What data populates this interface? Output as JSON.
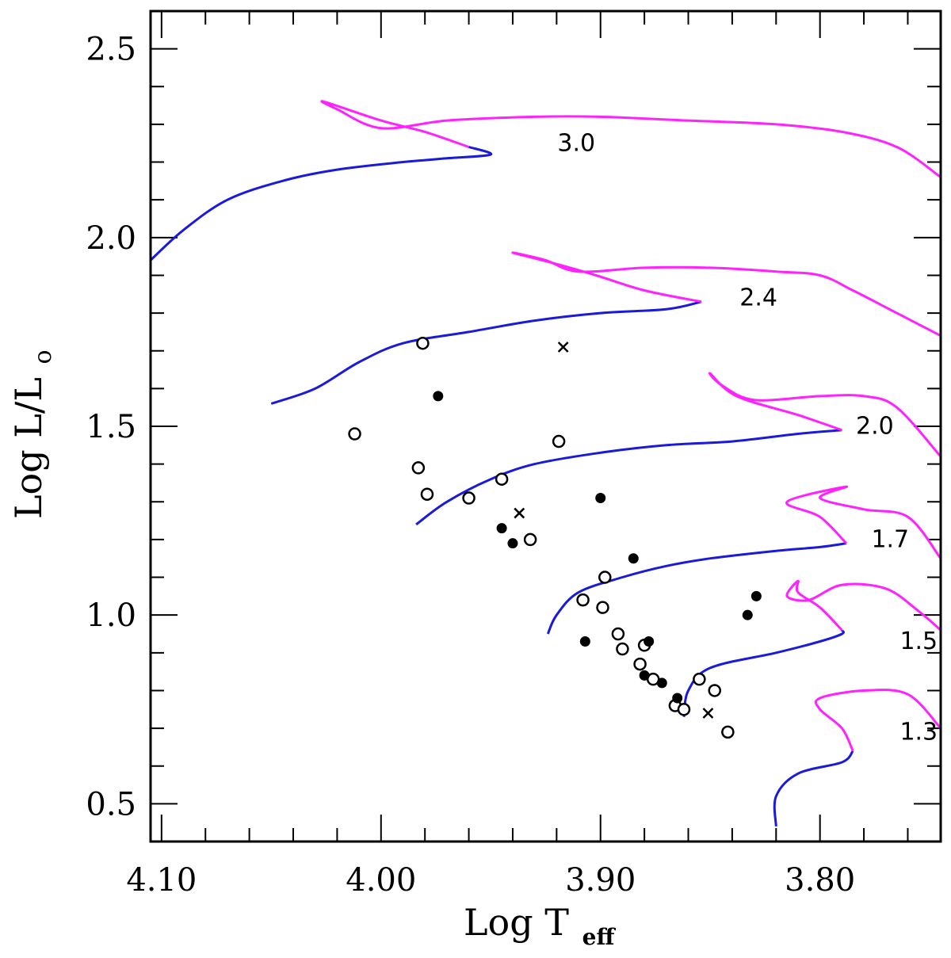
{
  "chart_data": {
    "type": "scatter",
    "title": "",
    "xlabel": "Log T",
    "xlabel_sub": "eff",
    "ylabel": "Log L/L",
    "ylabel_sub": "o",
    "xlim": [
      4.105,
      3.745
    ],
    "ylim": [
      0.4,
      2.6
    ],
    "x_ticks_major": [
      {
        "value": 4.1,
        "label": "4.10"
      },
      {
        "value": 4.0,
        "label": "4.00"
      },
      {
        "value": 3.9,
        "label": "3.90"
      },
      {
        "value": 3.8,
        "label": "3.80"
      }
    ],
    "x_ticks_minor": [
      4.08,
      4.06,
      4.04,
      4.02,
      3.98,
      3.96,
      3.94,
      3.92,
      3.88,
      3.86,
      3.84,
      3.82,
      3.78,
      3.76
    ],
    "y_ticks_major": [
      {
        "value": 0.5,
        "label": "0.5"
      },
      {
        "value": 1.0,
        "label": "1.0"
      },
      {
        "value": 1.5,
        "label": "1.5"
      },
      {
        "value": 2.0,
        "label": "2.0"
      },
      {
        "value": 2.5,
        "label": "2.5"
      }
    ],
    "y_ticks_minor": [
      0.6,
      0.7,
      0.8,
      0.9,
      1.1,
      1.2,
      1.3,
      1.4,
      1.6,
      1.7,
      1.8,
      1.9,
      2.1,
      2.2,
      2.3,
      2.4
    ],
    "colors": {
      "main_sequence": "#1a1adb",
      "post_main_sequence": "#ff22ff",
      "points": "#000000"
    },
    "tracks": [
      {
        "mass_label": "3.0",
        "label_pos": [
          3.911,
          2.23
        ],
        "blue": [
          [
            4.105,
            1.94
          ],
          [
            4.09,
            2.02
          ],
          [
            4.07,
            2.1
          ],
          [
            4.045,
            2.15
          ],
          [
            4.02,
            2.18
          ],
          [
            3.99,
            2.2
          ],
          [
            3.97,
            2.21
          ],
          [
            3.95,
            2.22
          ],
          [
            3.96,
            2.24
          ]
        ],
        "magenta": [
          [
            3.96,
            2.24
          ],
          [
            3.98,
            2.28
          ],
          [
            4.0,
            2.31
          ],
          [
            4.026,
            2.36
          ],
          [
            4.02,
            2.34
          ],
          [
            4.0,
            2.29
          ],
          [
            3.97,
            2.31
          ],
          [
            3.93,
            2.32
          ],
          [
            3.9,
            2.32
          ],
          [
            3.86,
            2.31
          ],
          [
            3.82,
            2.3
          ],
          [
            3.79,
            2.28
          ],
          [
            3.765,
            2.24
          ],
          [
            3.745,
            2.16
          ]
        ]
      },
      {
        "mass_label": "2.4",
        "label_pos": [
          3.828,
          1.82
        ],
        "blue": [
          [
            4.05,
            1.56
          ],
          [
            4.03,
            1.6
          ],
          [
            4.01,
            1.67
          ],
          [
            3.99,
            1.72
          ],
          [
            3.96,
            1.75
          ],
          [
            3.93,
            1.78
          ],
          [
            3.9,
            1.8
          ],
          [
            3.87,
            1.81
          ],
          [
            3.854,
            1.83
          ]
        ],
        "magenta": [
          [
            3.854,
            1.83
          ],
          [
            3.88,
            1.86
          ],
          [
            3.902,
            1.9
          ],
          [
            3.92,
            1.93
          ],
          [
            3.94,
            1.96
          ],
          [
            3.925,
            1.94
          ],
          [
            3.91,
            1.91
          ],
          [
            3.88,
            1.92
          ],
          [
            3.85,
            1.92
          ],
          [
            3.82,
            1.91
          ],
          [
            3.8,
            1.9
          ],
          [
            3.785,
            1.86
          ],
          [
            3.765,
            1.8
          ],
          [
            3.745,
            1.74
          ]
        ]
      },
      {
        "mass_label": "2.0",
        "label_pos": [
          3.775,
          1.48
        ],
        "blue": [
          [
            3.984,
            1.24
          ],
          [
            3.97,
            1.3
          ],
          [
            3.95,
            1.36
          ],
          [
            3.93,
            1.4
          ],
          [
            3.9,
            1.43
          ],
          [
            3.87,
            1.45
          ],
          [
            3.84,
            1.46
          ],
          [
            3.81,
            1.48
          ],
          [
            3.79,
            1.49
          ]
        ],
        "magenta": [
          [
            3.79,
            1.49
          ],
          [
            3.81,
            1.53
          ],
          [
            3.838,
            1.58
          ],
          [
            3.85,
            1.64
          ],
          [
            3.845,
            1.61
          ],
          [
            3.83,
            1.57
          ],
          [
            3.8,
            1.58
          ],
          [
            3.78,
            1.58
          ],
          [
            3.765,
            1.55
          ],
          [
            3.745,
            1.42
          ]
        ]
      },
      {
        "mass_label": "1.7",
        "label_pos": [
          3.768,
          1.18
        ],
        "blue": [
          [
            3.924,
            0.95
          ],
          [
            3.92,
            1.0
          ],
          [
            3.91,
            1.06
          ],
          [
            3.89,
            1.1
          ],
          [
            3.87,
            1.13
          ],
          [
            3.85,
            1.15
          ],
          [
            3.82,
            1.17
          ],
          [
            3.8,
            1.18
          ],
          [
            3.788,
            1.19
          ]
        ],
        "magenta": [
          [
            3.788,
            1.19
          ],
          [
            3.8,
            1.26
          ],
          [
            3.815,
            1.3
          ],
          [
            3.788,
            1.34
          ],
          [
            3.8,
            1.31
          ],
          [
            3.78,
            1.28
          ],
          [
            3.76,
            1.26
          ],
          [
            3.745,
            1.15
          ]
        ]
      },
      {
        "mass_label": "1.5",
        "label_pos": [
          3.755,
          0.91
        ],
        "blue": [
          [
            3.862,
            0.73
          ],
          [
            3.86,
            0.8
          ],
          [
            3.85,
            0.86
          ],
          [
            3.82,
            0.9
          ],
          [
            3.8,
            0.93
          ],
          [
            3.79,
            0.95
          ],
          [
            3.79,
            0.96
          ]
        ],
        "magenta": [
          [
            3.79,
            0.96
          ],
          [
            3.8,
            1.02
          ],
          [
            3.81,
            1.06
          ],
          [
            3.81,
            1.09
          ],
          [
            3.815,
            1.05
          ],
          [
            3.805,
            1.04
          ],
          [
            3.79,
            1.08
          ],
          [
            3.77,
            1.07
          ],
          [
            3.755,
            1.01
          ],
          [
            3.745,
            0.96
          ]
        ]
      },
      {
        "mass_label": "1.3",
        "label_pos": [
          3.755,
          0.67
        ],
        "blue": [
          [
            3.82,
            0.44
          ],
          [
            3.82,
            0.52
          ],
          [
            3.81,
            0.58
          ],
          [
            3.79,
            0.61
          ],
          [
            3.785,
            0.64
          ]
        ],
        "magenta": [
          [
            3.785,
            0.64
          ],
          [
            3.79,
            0.7
          ],
          [
            3.8,
            0.75
          ],
          [
            3.8,
            0.78
          ],
          [
            3.78,
            0.8
          ],
          [
            3.76,
            0.79
          ],
          [
            3.745,
            0.7
          ]
        ]
      }
    ],
    "series": [
      {
        "name": "open-circles",
        "marker": "open-circle",
        "points": [
          [
            3.981,
            1.72
          ],
          [
            4.012,
            1.48
          ],
          [
            3.983,
            1.39
          ],
          [
            3.979,
            1.32
          ],
          [
            3.96,
            1.31
          ],
          [
            3.945,
            1.36
          ],
          [
            3.919,
            1.46
          ],
          [
            3.932,
            1.2
          ],
          [
            3.898,
            1.1
          ],
          [
            3.908,
            1.04
          ],
          [
            3.899,
            1.02
          ],
          [
            3.892,
            0.95
          ],
          [
            3.89,
            0.91
          ],
          [
            3.88,
            0.92
          ],
          [
            3.882,
            0.87
          ],
          [
            3.876,
            0.83
          ],
          [
            3.866,
            0.76
          ],
          [
            3.862,
            0.75
          ],
          [
            3.855,
            0.83
          ],
          [
            3.848,
            0.8
          ],
          [
            3.842,
            0.69
          ]
        ]
      },
      {
        "name": "filled-circles",
        "marker": "filled-circle",
        "points": [
          [
            3.974,
            1.58
          ],
          [
            3.945,
            1.23
          ],
          [
            3.94,
            1.19
          ],
          [
            3.9,
            1.31
          ],
          [
            3.885,
            1.15
          ],
          [
            3.907,
            0.93
          ],
          [
            3.878,
            0.93
          ],
          [
            3.88,
            0.84
          ],
          [
            3.872,
            0.82
          ],
          [
            3.865,
            0.78
          ],
          [
            3.833,
            1.0
          ],
          [
            3.829,
            1.05
          ]
        ]
      },
      {
        "name": "crosses",
        "marker": "cross",
        "points": [
          [
            3.917,
            1.71
          ],
          [
            3.937,
            1.27
          ],
          [
            3.851,
            0.74
          ]
        ]
      }
    ]
  }
}
